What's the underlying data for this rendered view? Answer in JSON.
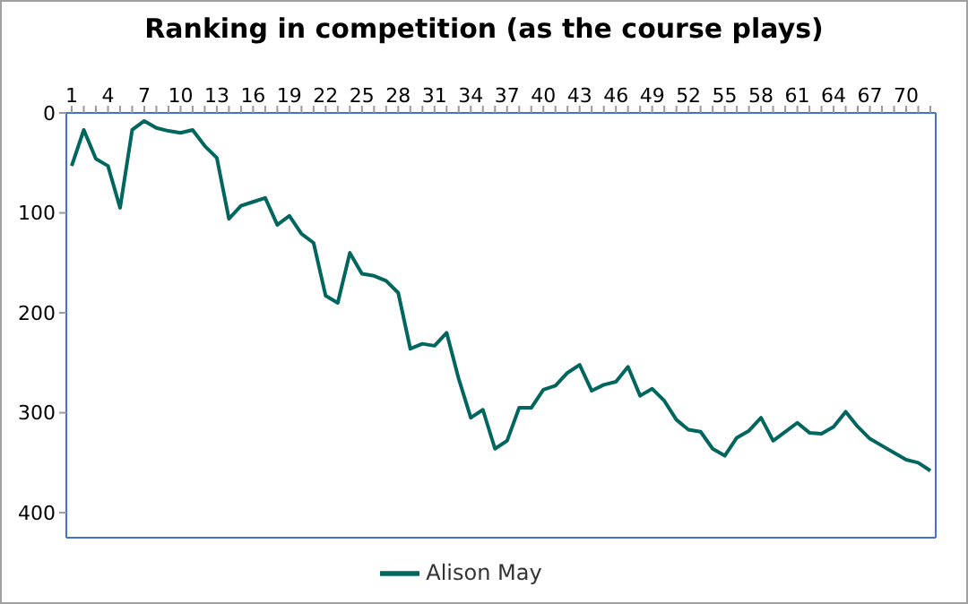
{
  "chart_data": {
    "type": "line",
    "title": "Ranking in competition (as the course plays)",
    "categories": [
      "1",
      null,
      null,
      "4",
      null,
      null,
      "7",
      null,
      null,
      "10",
      null,
      null,
      "13",
      null,
      null,
      "16",
      null,
      null,
      "19",
      null,
      null,
      "22",
      null,
      null,
      "25",
      null,
      null,
      "28",
      null,
      null,
      "31",
      null,
      null,
      "34",
      null,
      null,
      "37",
      null,
      null,
      "40",
      null,
      null,
      "43",
      null,
      null,
      "46",
      null,
      null,
      "49",
      null,
      null,
      "52",
      null,
      null,
      "55",
      null,
      null,
      "58",
      null,
      null,
      "61",
      null,
      null,
      "64",
      null,
      null,
      "67",
      null,
      null,
      "70",
      null,
      null
    ],
    "series": [
      {
        "name": "Alison May",
        "color": "#00665e",
        "values": [
          53,
          17,
          46,
          53,
          95,
          17,
          8,
          15,
          18,
          20,
          17,
          33,
          45,
          106,
          93,
          89,
          85,
          112,
          103,
          121,
          130,
          183,
          190,
          140,
          161,
          163,
          168,
          180,
          236,
          231,
          233,
          220,
          266,
          305,
          297,
          336,
          328,
          295,
          295,
          277,
          273,
          260,
          252,
          278,
          272,
          269,
          254,
          283,
          276,
          288,
          307,
          317,
          319,
          336,
          343,
          325,
          318,
          305,
          328,
          319,
          310,
          320,
          321,
          314,
          299,
          314,
          326,
          333,
          340,
          347,
          350,
          358
        ]
      }
    ],
    "ylim": [
      425,
      0
    ],
    "yticks": [
      0,
      100,
      200,
      300,
      400
    ],
    "legend": "bottom",
    "marker": "none",
    "line_style": "solid"
  }
}
